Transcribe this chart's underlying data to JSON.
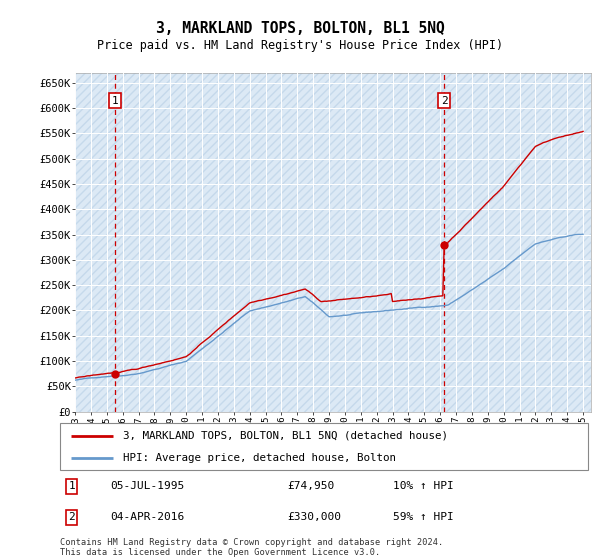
{
  "title": "3, MARKLAND TOPS, BOLTON, BL1 5NQ",
  "subtitle": "Price paid vs. HM Land Registry's House Price Index (HPI)",
  "ylabel_ticks": [
    "£0",
    "£50K",
    "£100K",
    "£150K",
    "£200K",
    "£250K",
    "£300K",
    "£350K",
    "£400K",
    "£450K",
    "£500K",
    "£550K",
    "£600K",
    "£650K"
  ],
  "ytick_values": [
    0,
    50000,
    100000,
    150000,
    200000,
    250000,
    300000,
    350000,
    400000,
    450000,
    500000,
    550000,
    600000,
    650000
  ],
  "ylim": [
    0,
    670000
  ],
  "xlim_start": 1993.0,
  "xlim_end": 2025.5,
  "background_color": "#dce9f5",
  "hatch_color": "#b8cfe0",
  "grid_color": "#ffffff",
  "sale1_x": 1995.54,
  "sale1_y": 74950,
  "sale1_label": "1",
  "sale1_date": "05-JUL-1995",
  "sale1_price": "£74,950",
  "sale1_hpi": "10% ↑ HPI",
  "sale2_x": 2016.25,
  "sale2_y": 330000,
  "sale2_label": "2",
  "sale2_date": "04-APR-2016",
  "sale2_price": "£330,000",
  "sale2_hpi": "59% ↑ HPI",
  "line1_label": "3, MARKLAND TOPS, BOLTON, BL1 5NQ (detached house)",
  "line2_label": "HPI: Average price, detached house, Bolton",
  "line1_color": "#cc0000",
  "line2_color": "#6699cc",
  "marker_color": "#cc0000",
  "vline_color": "#cc0000",
  "footnote": "Contains HM Land Registry data © Crown copyright and database right 2024.\nThis data is licensed under the Open Government Licence v3.0.",
  "xtick_years": [
    1993,
    1994,
    1995,
    1996,
    1997,
    1998,
    1999,
    2000,
    2001,
    2002,
    2003,
    2004,
    2005,
    2006,
    2007,
    2008,
    2009,
    2010,
    2011,
    2012,
    2013,
    2014,
    2015,
    2016,
    2017,
    2018,
    2019,
    2020,
    2021,
    2022,
    2023,
    2024,
    2025
  ]
}
